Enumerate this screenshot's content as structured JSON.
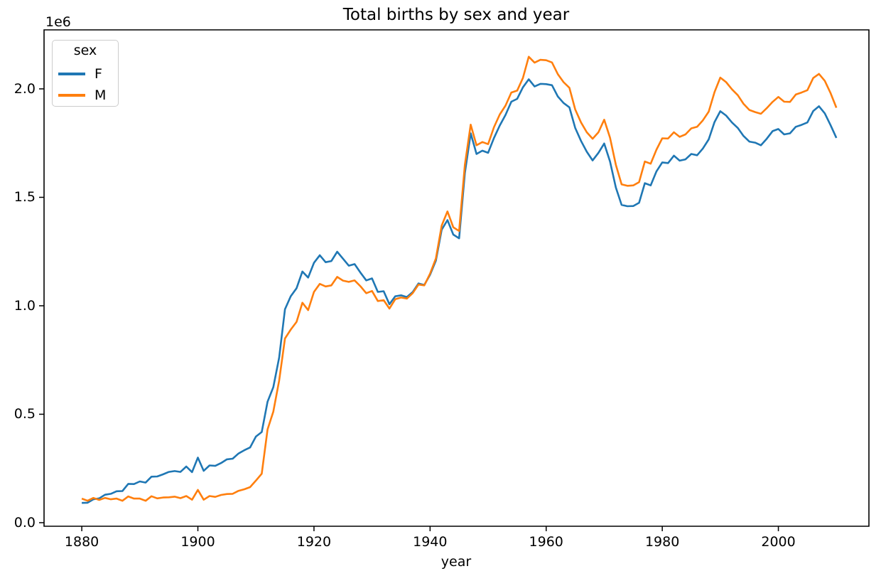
{
  "chart_data": {
    "type": "line",
    "title": "Total births by sex and year",
    "xlabel": "year",
    "ylabel": "",
    "y_offset_label": "1e6",
    "grid": false,
    "legend": {
      "title": "sex",
      "position": "upper left"
    },
    "xlim": [
      1873.5,
      2015.6
    ],
    "ylim": [
      -16400,
      2272000
    ],
    "x_ticks": [
      1880,
      1900,
      1920,
      1940,
      1960,
      1980,
      2000
    ],
    "y_ticks": [
      {
        "value": 0,
        "label": "0.0"
      },
      {
        "value": 500000,
        "label": "0.5"
      },
      {
        "value": 1000000,
        "label": "1.0"
      },
      {
        "value": 1500000,
        "label": "1.5"
      },
      {
        "value": 2000000,
        "label": "2.0"
      }
    ],
    "years": [
      1880,
      1881,
      1882,
      1883,
      1884,
      1885,
      1886,
      1887,
      1888,
      1889,
      1890,
      1891,
      1892,
      1893,
      1894,
      1895,
      1896,
      1897,
      1898,
      1899,
      1900,
      1901,
      1902,
      1903,
      1904,
      1905,
      1906,
      1907,
      1908,
      1909,
      1910,
      1911,
      1912,
      1913,
      1914,
      1915,
      1916,
      1917,
      1918,
      1919,
      1920,
      1921,
      1922,
      1923,
      1924,
      1925,
      1926,
      1927,
      1928,
      1929,
      1930,
      1931,
      1932,
      1933,
      1934,
      1935,
      1936,
      1937,
      1938,
      1939,
      1940,
      1941,
      1942,
      1943,
      1944,
      1945,
      1946,
      1947,
      1948,
      1949,
      1950,
      1951,
      1952,
      1953,
      1954,
      1955,
      1956,
      1957,
      1958,
      1959,
      1960,
      1961,
      1962,
      1963,
      1964,
      1965,
      1966,
      1967,
      1968,
      1969,
      1970,
      1971,
      1972,
      1973,
      1974,
      1975,
      1976,
      1977,
      1978,
      1979,
      1980,
      1981,
      1982,
      1983,
      1984,
      1985,
      1986,
      1987,
      1988,
      1989,
      1990,
      1991,
      1992,
      1993,
      1994,
      1995,
      1996,
      1997,
      1998,
      1999,
      2000,
      2001,
      2002,
      2003,
      2004,
      2005,
      2006,
      2007,
      2008,
      2009,
      2010
    ],
    "series": [
      {
        "name": "F",
        "color": "#1f77b4",
        "values": [
          91000,
          92000,
          108000,
          112000,
          129000,
          133000,
          145000,
          146000,
          179000,
          178000,
          190000,
          185000,
          212000,
          213000,
          223000,
          234000,
          238000,
          234000,
          259000,
          233000,
          300000,
          239000,
          264000,
          262000,
          275000,
          292000,
          295000,
          319000,
          334000,
          347000,
          397000,
          418000,
          558000,
          625000,
          761000,
          984000,
          1044000,
          1081000,
          1158000,
          1130000,
          1198000,
          1233000,
          1201000,
          1206000,
          1249000,
          1217000,
          1185000,
          1192000,
          1153000,
          1117000,
          1126000,
          1064000,
          1067000,
          1007000,
          1044000,
          1048000,
          1040000,
          1063000,
          1103000,
          1096000,
          1143000,
          1208000,
          1351000,
          1395000,
          1328000,
          1311000,
          1612000,
          1795000,
          1700000,
          1715000,
          1705000,
          1773000,
          1831000,
          1880000,
          1941000,
          1954000,
          2007000,
          2044000,
          2011000,
          2023000,
          2022000,
          2017000,
          1965000,
          1935000,
          1915000,
          1820000,
          1760000,
          1710000,
          1670000,
          1705000,
          1748000,
          1665000,
          1545000,
          1465000,
          1459000,
          1460000,
          1475000,
          1565000,
          1555000,
          1620000,
          1661000,
          1658000,
          1692000,
          1669000,
          1675000,
          1700000,
          1694000,
          1725000,
          1767000,
          1847000,
          1897000,
          1877000,
          1845000,
          1820000,
          1783000,
          1757000,
          1752000,
          1740000,
          1770000,
          1805000,
          1815000,
          1790000,
          1795000,
          1825000,
          1834000,
          1845000,
          1898000,
          1920000,
          1887000,
          1832000,
          1774000
        ]
      },
      {
        "name": "M",
        "color": "#ff7f0e",
        "values": [
          111000,
          101000,
          114000,
          105000,
          114000,
          108000,
          111000,
          101000,
          121000,
          111000,
          111000,
          101000,
          122000,
          112000,
          116000,
          117000,
          120000,
          113000,
          123000,
          106000,
          151000,
          106000,
          123000,
          119000,
          128000,
          132000,
          133000,
          147000,
          154000,
          164000,
          194000,
          226000,
          430000,
          512000,
          655000,
          849000,
          890000,
          926000,
          1014000,
          980000,
          1064000,
          1101000,
          1089000,
          1094000,
          1133000,
          1116000,
          1110000,
          1117000,
          1090000,
          1058000,
          1068000,
          1022000,
          1026000,
          987000,
          1030000,
          1038000,
          1033000,
          1058000,
          1098000,
          1094000,
          1148000,
          1218000,
          1370000,
          1435000,
          1362000,
          1345000,
          1650000,
          1835000,
          1740000,
          1755000,
          1745000,
          1823000,
          1882000,
          1923000,
          1983000,
          1992000,
          2050000,
          2148000,
          2121000,
          2134000,
          2132000,
          2122000,
          2068000,
          2031000,
          2005000,
          1905000,
          1845000,
          1800000,
          1770000,
          1800000,
          1858000,
          1775000,
          1650000,
          1560000,
          1553000,
          1555000,
          1570000,
          1665000,
          1655000,
          1720000,
          1772000,
          1771000,
          1800000,
          1779000,
          1790000,
          1818000,
          1825000,
          1855000,
          1895000,
          1985000,
          2052000,
          2031000,
          1998000,
          1971000,
          1931000,
          1903000,
          1893000,
          1885000,
          1911000,
          1940000,
          1963000,
          1941000,
          1940000,
          1974000,
          1983000,
          1994000,
          2050000,
          2069000,
          2037000,
          1980000,
          1913000
        ]
      }
    ]
  }
}
